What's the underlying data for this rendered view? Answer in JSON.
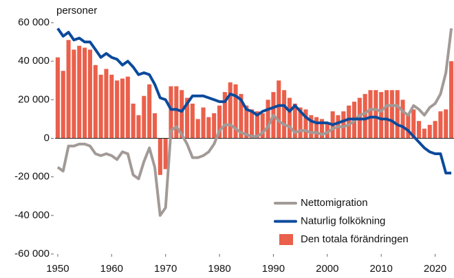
{
  "chart_data": {
    "type": "combo",
    "y_label": "personer",
    "x": [
      1950,
      1951,
      1952,
      1953,
      1954,
      1955,
      1956,
      1957,
      1958,
      1959,
      1960,
      1961,
      1962,
      1963,
      1964,
      1965,
      1966,
      1967,
      1968,
      1969,
      1970,
      1971,
      1972,
      1973,
      1974,
      1975,
      1976,
      1977,
      1978,
      1979,
      1980,
      1981,
      1982,
      1983,
      1984,
      1985,
      1986,
      1987,
      1988,
      1989,
      1990,
      1991,
      1992,
      1993,
      1994,
      1995,
      1996,
      1997,
      1998,
      1999,
      2000,
      2001,
      2002,
      2003,
      2004,
      2005,
      2006,
      2007,
      2008,
      2009,
      2010,
      2011,
      2012,
      2013,
      2014,
      2015,
      2016,
      2017,
      2018,
      2019,
      2020,
      2021,
      2022,
      2023
    ],
    "series": [
      {
        "name": "Nettomigration",
        "type": "line",
        "color": "#a29a97",
        "values": [
          -15000,
          -17000,
          -4000,
          -4000,
          -3000,
          -3000,
          -4000,
          -8000,
          -9000,
          -8000,
          -9000,
          -11000,
          -7000,
          -8000,
          -19000,
          -21000,
          -12000,
          -5000,
          -15000,
          -40000,
          -36000,
          4000,
          6000,
          2000,
          -3000,
          -10000,
          -10000,
          -9000,
          -7000,
          -3000,
          4000,
          7000,
          7000,
          5000,
          3000,
          2000,
          1000,
          1000,
          3000,
          6000,
          12000,
          9000,
          7000,
          6000,
          3000,
          4000,
          4000,
          3000,
          3000,
          2000,
          3000,
          5000,
          6000,
          6000,
          7000,
          9000,
          12000,
          13000,
          15000,
          15000,
          14000,
          17000,
          17000,
          17000,
          14000,
          12000,
          17000,
          15000,
          12000,
          16000,
          18000,
          23000,
          34000,
          57000
        ]
      },
      {
        "name": "Naturlig folkökning",
        "type": "line",
        "color": "#0b4a9c",
        "values": [
          57000,
          53000,
          55000,
          51000,
          52000,
          50000,
          50000,
          46000,
          42000,
          44000,
          42000,
          41000,
          38000,
          40000,
          37000,
          33000,
          34000,
          33000,
          28000,
          21000,
          20000,
          15000,
          15000,
          14000,
          18000,
          22000,
          22000,
          22000,
          21000,
          20000,
          19000,
          19000,
          23000,
          22000,
          20000,
          15000,
          14000,
          12000,
          14000,
          15000,
          16000,
          17000,
          17000,
          14000,
          17000,
          14000,
          11000,
          9000,
          8000,
          8000,
          8000,
          7000,
          8000,
          9000,
          10000,
          10000,
          10000,
          10000,
          11000,
          11000,
          10000,
          10000,
          9000,
          7000,
          6000,
          4000,
          1000,
          -2000,
          -5000,
          -7000,
          -8000,
          -8000,
          -18000,
          -18000
        ]
      },
      {
        "name": "Den totala förändringen",
        "type": "bar",
        "color": "#ea604b",
        "values": [
          42000,
          35000,
          51000,
          46000,
          48000,
          47000,
          46000,
          38000,
          33000,
          36000,
          33000,
          30000,
          31000,
          32000,
          18000,
          12000,
          22000,
          28000,
          13000,
          -19000,
          -16000,
          27000,
          27000,
          25000,
          21000,
          18000,
          10000,
          16000,
          11000,
          13000,
          17000,
          24000,
          29000,
          28000,
          23000,
          17000,
          15000,
          14000,
          13000,
          20000,
          24000,
          30000,
          25000,
          21000,
          18000,
          16000,
          15000,
          12000,
          11000,
          10000,
          8000,
          14000,
          12000,
          14000,
          17000,
          19000,
          21000,
          23000,
          25000,
          25000,
          24000,
          25000,
          25000,
          25000,
          20000,
          13000,
          15000,
          9000,
          5000,
          7000,
          9000,
          14000,
          15000,
          40000
        ]
      }
    ],
    "xlim": [
      1949.5,
      2023.5
    ],
    "xticks": [
      1950,
      1960,
      1970,
      1980,
      1990,
      2000,
      2010,
      2020
    ],
    "ylim": [
      -60000,
      60000
    ],
    "yticks": [
      {
        "value": -60000,
        "label": "-60 000"
      },
      {
        "value": -40000,
        "label": "-40 000"
      },
      {
        "value": -20000,
        "label": "-20 000"
      },
      0,
      {
        "value": 20000,
        "label": "20 000"
      },
      {
        "value": 40000,
        "label": "40 000"
      },
      {
        "value": 60000,
        "label": "60 000"
      }
    ],
    "legend": "lower right"
  }
}
